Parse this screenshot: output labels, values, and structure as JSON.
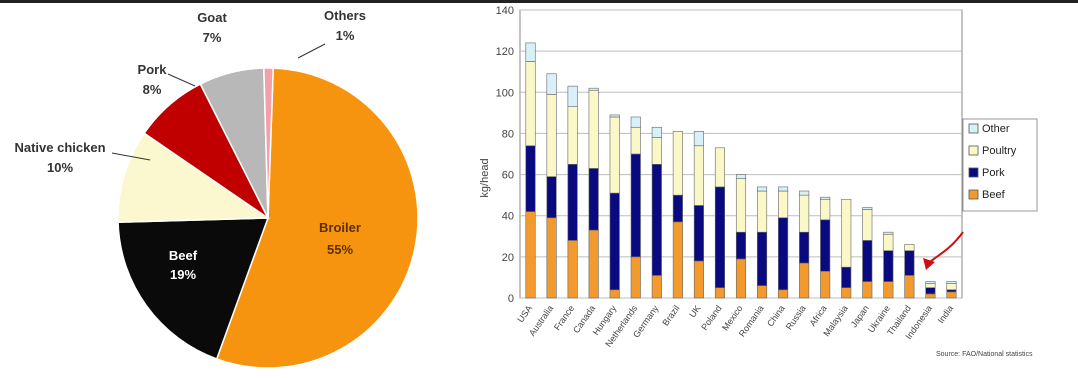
{
  "chart_data": [
    {
      "type": "pie",
      "slices": [
        {
          "label": "Broiler",
          "pct_label": "55%",
          "value": 55,
          "color": "#f7940f"
        },
        {
          "label": "Beef",
          "pct_label": "19%",
          "value": 19,
          "color": "#0a0a0a"
        },
        {
          "label": "Native chicken",
          "pct_label": "10%",
          "value": 10,
          "color": "#fbf7cf"
        },
        {
          "label": "Pork",
          "pct_label": "8%",
          "value": 8,
          "color": "#c00000"
        },
        {
          "label": "Goat",
          "pct_label": "7%",
          "value": 7,
          "color": "#b8b8b8"
        },
        {
          "label": "Others",
          "pct_label": "1%",
          "value": 1,
          "color": "#f3a0a8"
        }
      ]
    },
    {
      "type": "bar",
      "stacked": true,
      "ylabel": "kg/head",
      "ylim": [
        0,
        140
      ],
      "yticks": [
        0,
        20,
        40,
        60,
        80,
        100,
        120,
        140
      ],
      "grid": true,
      "legend_position": "right",
      "categories": [
        "USA",
        "Australia",
        "France",
        "Canada",
        "Hungary",
        "Netherlands",
        "Germany",
        "Brazil",
        "UK",
        "Poland",
        "Mexico",
        "Romania",
        "China",
        "Russia",
        "Africa",
        "Malaysia",
        "Japan",
        "Ukraine",
        "Thailand",
        "Indonesia",
        "India"
      ],
      "series": [
        {
          "name": "Beef",
          "color": "#f29a2e",
          "values": [
            42,
            39,
            28,
            33,
            4,
            20,
            11,
            37,
            18,
            5,
            19,
            6,
            4,
            17,
            13,
            5,
            8,
            8,
            11,
            2,
            3
          ]
        },
        {
          "name": "Pork",
          "color": "#0a0a80",
          "values": [
            32,
            20,
            37,
            30,
            47,
            50,
            54,
            13,
            27,
            49,
            13,
            26,
            35,
            15,
            25,
            10,
            20,
            15,
            12,
            3,
            1
          ]
        },
        {
          "name": "Poultry",
          "color": "#fbf8c8",
          "values": [
            41,
            40,
            28,
            38,
            37,
            13,
            13,
            31,
            29,
            19,
            26,
            20,
            13,
            18,
            10,
            33,
            15,
            8,
            3,
            2,
            3
          ]
        },
        {
          "name": "Other",
          "color": "#d8f0f8",
          "values": [
            9,
            10,
            10,
            1,
            1,
            5,
            5,
            0,
            7,
            0,
            2,
            2,
            2,
            2,
            1,
            0,
            1,
            1,
            0,
            1,
            1
          ]
        }
      ],
      "source": "Source: FAO/National statistics"
    }
  ]
}
